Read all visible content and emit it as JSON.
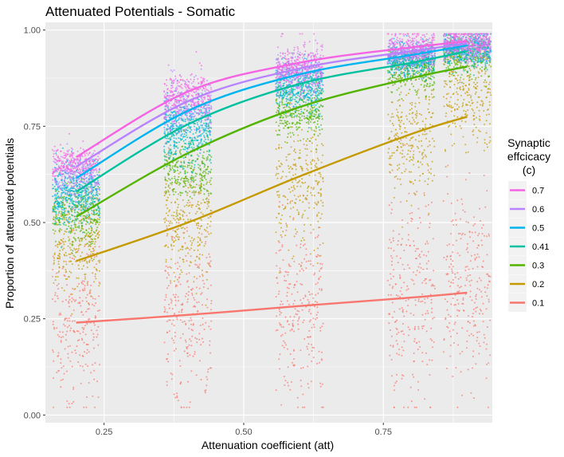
{
  "chart_data": {
    "type": "scatter",
    "title": "Attenuated Potentials - Somatic",
    "xlabel": "Attenuation coefficient (att)",
    "ylabel": "Proportion of attenuated potentials",
    "xlim": [
      0.145,
      0.945
    ],
    "ylim": [
      -0.02,
      1.02
    ],
    "x_ticks": [
      "0.25",
      "0.50",
      "0.75"
    ],
    "x_tick_values": [
      0.25,
      0.5,
      0.75
    ],
    "y_ticks": [
      "0.00",
      "0.25",
      "0.50",
      "0.75",
      "1.00"
    ],
    "y_tick_values": [
      0.0,
      0.25,
      0.5,
      0.75,
      1.0
    ],
    "x": [
      0.2,
      0.4,
      0.6,
      0.8,
      0.9
    ],
    "grid": true,
    "legend_position": "right",
    "legend_title": "Synaptic\neffcicacy\n(c)",
    "series": [
      {
        "name": "0.7",
        "color": "#F564E3",
        "cluster_means": [
          0.655,
          0.83,
          0.905,
          0.95,
          0.965
        ],
        "cluster_spreads": [
          0.02,
          0.03,
          0.03,
          0.02,
          0.02
        ],
        "fit": [
          0.67,
          0.84,
          0.915,
          0.955,
          0.97
        ]
      },
      {
        "name": "0.6",
        "color": "#B983FF",
        "cluster_means": [
          0.62,
          0.8,
          0.885,
          0.94,
          0.96
        ],
        "cluster_spreads": [
          0.03,
          0.035,
          0.03,
          0.02,
          0.02
        ],
        "fit": [
          0.645,
          0.815,
          0.9,
          0.945,
          0.965
        ]
      },
      {
        "name": "0.5",
        "color": "#00B4F0",
        "cluster_means": [
          0.59,
          0.76,
          0.865,
          0.93,
          0.955
        ],
        "cluster_spreads": [
          0.035,
          0.04,
          0.03,
          0.02,
          0.02
        ],
        "fit": [
          0.615,
          0.79,
          0.885,
          0.935,
          0.96
        ]
      },
      {
        "name": "0.41",
        "color": "#00C19F",
        "cluster_means": [
          0.555,
          0.72,
          0.845,
          0.915,
          0.945
        ],
        "cluster_spreads": [
          0.035,
          0.04,
          0.03,
          0.02,
          0.02
        ],
        "fit": [
          0.58,
          0.755,
          0.86,
          0.915,
          0.945
        ]
      },
      {
        "name": "0.3",
        "color": "#53B400",
        "cluster_means": [
          0.52,
          0.63,
          0.78,
          0.89,
          0.93
        ],
        "cluster_spreads": [
          0.04,
          0.035,
          0.03,
          0.025,
          0.025
        ],
        "fit": [
          0.515,
          0.68,
          0.8,
          0.875,
          0.905
        ]
      },
      {
        "name": "0.2",
        "color": "#C49A00",
        "cluster_means": [
          0.45,
          0.51,
          0.6,
          0.72,
          0.83
        ],
        "cluster_spreads": [
          0.06,
          0.07,
          0.08,
          0.08,
          0.07
        ],
        "fit": [
          0.4,
          0.5,
          0.62,
          0.73,
          0.775
        ]
      },
      {
        "name": "0.1",
        "color": "#F8766D",
        "cluster_means": [
          0.26,
          0.27,
          0.29,
          0.31,
          0.33
        ],
        "cluster_spreads": [
          0.11,
          0.12,
          0.13,
          0.13,
          0.13
        ],
        "fit": [
          0.24,
          0.26,
          0.283,
          0.305,
          0.318
        ]
      }
    ]
  }
}
